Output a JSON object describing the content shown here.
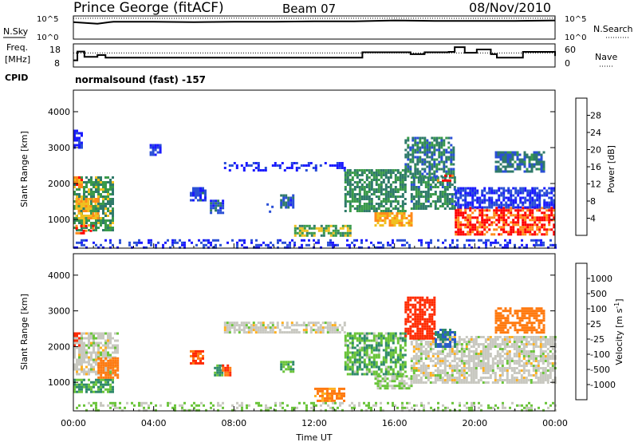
{
  "header": {
    "station": "Prince George (fitACF)",
    "beam": "Beam 07",
    "date": "08/Nov/2010"
  },
  "panels": {
    "nsky": {
      "label": "N.Sky",
      "right_label": "N.Search",
      "y_ticks": [
        "10^5",
        "10^0"
      ]
    },
    "freq": {
      "label_line1": "Freq.",
      "label_line2": "[MHz]",
      "left_ticks": [
        "18",
        "8"
      ],
      "right_ticks": [
        "60",
        "0"
      ],
      "right_label": "Nave"
    },
    "cpid": {
      "label": "CPID",
      "mode_text": "normalsound (fast) -157"
    }
  },
  "colors": {
    "power": [
      "#1a1aff",
      "#2a4fd6",
      "#2f7a6a",
      "#3a9a4a",
      "#7acc3a",
      "#f0c020",
      "#ff8a1a",
      "#ff4a1a",
      "#ff0000"
    ],
    "velocity": [
      "#1a1aff",
      "#2a5cc8",
      "#2f8a6a",
      "#6ac43a",
      "#c8c8c0",
      "#ffb020",
      "#ff7a10",
      "#ff2a00",
      "#ff0000"
    ]
  },
  "chart_data": [
    {
      "type": "line",
      "panel": "nsky",
      "ylabel": "N.Sky",
      "y_ticks": [
        "10^0",
        "10^5"
      ],
      "series": [
        {
          "name": "N.Sky",
          "x": [
            0,
            1.2,
            1.8,
            2,
            4,
            6,
            8,
            10,
            12,
            14,
            16,
            18,
            20,
            22,
            24
          ],
          "y": [
            0.78,
            0.7,
            0.78,
            0.8,
            0.8,
            0.78,
            0.8,
            0.8,
            0.82,
            0.82,
            0.86,
            0.84,
            0.84,
            0.84,
            0.86
          ]
        },
        {
          "name": "N.Search",
          "x": [
            0,
            2,
            4,
            8,
            12,
            16,
            20,
            24
          ],
          "y": [
            0.96,
            0.97,
            0.96,
            0.97,
            0.96,
            0.97,
            0.96,
            0.97
          ]
        }
      ]
    },
    {
      "type": "line",
      "panel": "freq",
      "ylabel": "Freq. [MHz]",
      "y_ticks": [
        8,
        18
      ],
      "series": [
        {
          "name": "Freq.",
          "x": [
            0,
            0.2,
            0.55,
            1.2,
            1.6,
            14.0,
            14.4,
            16.8,
            17.5,
            18.7,
            19.0,
            19.5,
            20.1,
            20.8,
            21.1,
            21.9,
            22.4,
            23.2,
            24
          ],
          "y": [
            10,
            15,
            12,
            13,
            11.5,
            11.5,
            14.6,
            13.5,
            14.6,
            14.8,
            17.5,
            14.3,
            16.2,
            13.5,
            11.5,
            11.5,
            14.8,
            14.8,
            12.5
          ]
        },
        {
          "name": "Nave",
          "x": [
            0,
            24
          ],
          "y": [
            37,
            37
          ]
        }
      ]
    },
    {
      "type": "heatmap",
      "title": "Power [dB]",
      "xlabel": "",
      "ylabel": "Slant Range [km]",
      "x_ticks": [
        "00:00",
        "04:00",
        "08:00",
        "12:00",
        "16:00",
        "20:00",
        "00:00"
      ],
      "xlim": [
        0,
        24
      ],
      "y_ticks": [
        1000,
        2000,
        3000,
        4000
      ],
      "ylim": [
        200,
        4600
      ],
      "colorbar": {
        "label": "Power [dB]",
        "ticks": [
          4,
          8,
          12,
          16,
          20,
          24,
          28
        ]
      },
      "regions": [
        {
          "t0": 0.0,
          "t1": 2.0,
          "r0": 700,
          "r1": 2200,
          "v": 15
        },
        {
          "t0": 0.1,
          "t1": 1.2,
          "r0": 1000,
          "r1": 1600,
          "v": 22
        },
        {
          "t0": 0.1,
          "t1": 1.0,
          "r0": 600,
          "r1": 850,
          "v": 26
        },
        {
          "t0": 0.0,
          "t1": 0.4,
          "r0": 1900,
          "r1": 2200,
          "v": 24
        },
        {
          "t0": 0.0,
          "t1": 0.4,
          "r0": 3000,
          "r1": 3500,
          "v": 4
        },
        {
          "t0": 3.8,
          "t1": 4.3,
          "r0": 2800,
          "r1": 3100,
          "v": 6
        },
        {
          "t0": 5.8,
          "t1": 6.6,
          "r0": 1500,
          "r1": 1900,
          "v": 7
        },
        {
          "t0": 6.8,
          "t1": 7.5,
          "r0": 1200,
          "r1": 1550,
          "v": 9
        },
        {
          "t0": 9.5,
          "t1": 10.2,
          "r0": 1200,
          "r1": 1450,
          "v": 12
        },
        {
          "t0": 10.3,
          "t1": 11.0,
          "r0": 1300,
          "r1": 1700,
          "v": 9
        },
        {
          "t0": 11.0,
          "t1": 13.8,
          "r0": 550,
          "r1": 850,
          "v": 17
        },
        {
          "t0": 7.5,
          "t1": 13.5,
          "r0": 2350,
          "r1": 2600,
          "v": 5
        },
        {
          "t0": 13.5,
          "t1": 16.5,
          "r0": 1200,
          "r1": 2400,
          "v": 14
        },
        {
          "t0": 15.0,
          "t1": 16.8,
          "r0": 800,
          "r1": 1200,
          "v": 22
        },
        {
          "t0": 16.8,
          "t1": 19.0,
          "r0": 1300,
          "r1": 2200,
          "v": 13
        },
        {
          "t0": 16.5,
          "t1": 19.0,
          "r0": 2200,
          "r1": 3300,
          "v": 12
        },
        {
          "t0": 18.0,
          "t1": 19.0,
          "r0": 2050,
          "r1": 2250,
          "v": 26
        },
        {
          "t0": 19.0,
          "t1": 24.0,
          "r0": 600,
          "r1": 1350,
          "v": 27
        },
        {
          "t0": 19.0,
          "t1": 24.0,
          "r0": 1350,
          "r1": 1900,
          "v": 6
        },
        {
          "t0": 21.0,
          "t1": 23.5,
          "r0": 2300,
          "r1": 2900,
          "v": 11
        },
        {
          "t0": 0.0,
          "t1": 24.0,
          "r0": 200,
          "r1": 450,
          "v": 6
        }
      ]
    },
    {
      "type": "heatmap",
      "title": "Velocity [m s-1]",
      "xlabel": "Time UT",
      "ylabel": "Slant Range [km]",
      "x_ticks": [
        "00:00",
        "04:00",
        "08:00",
        "12:00",
        "16:00",
        "20:00",
        "00:00"
      ],
      "xlim": [
        0,
        24
      ],
      "y_ticks": [
        1000,
        2000,
        3000,
        4000
      ],
      "ylim": [
        200,
        4600
      ],
      "colorbar": {
        "label": "Velocity [m s",
        "label_sup": "-1",
        "label_end": "]",
        "ticks": [
          1000,
          500,
          100,
          25,
          -25,
          -100,
          -500,
          -1000
        ]
      },
      "regions": [
        {
          "t0": 0.0,
          "t1": 2.2,
          "r0": 1200,
          "r1": 2400,
          "v": 0
        },
        {
          "t0": 0.0,
          "t1": 2.0,
          "r0": 700,
          "r1": 1100,
          "v": 60
        },
        {
          "t0": 1.2,
          "t1": 2.2,
          "r0": 1100,
          "r1": 1700,
          "v": -150
        },
        {
          "t0": 0.0,
          "t1": 0.3,
          "r0": 2000,
          "r1": 2400,
          "v": -700
        },
        {
          "t0": 5.8,
          "t1": 6.5,
          "r0": 1500,
          "r1": 1900,
          "v": -300
        },
        {
          "t0": 7.0,
          "t1": 7.4,
          "r0": 1200,
          "r1": 1500,
          "v": 80
        },
        {
          "t0": 7.4,
          "t1": 7.8,
          "r0": 1200,
          "r1": 1500,
          "v": -300
        },
        {
          "t0": 10.3,
          "t1": 10.9,
          "r0": 1300,
          "r1": 1600,
          "v": 60
        },
        {
          "t0": 12.0,
          "t1": 13.5,
          "r0": 500,
          "r1": 850,
          "v": -80
        },
        {
          "t0": 7.5,
          "t1": 13.5,
          "r0": 2400,
          "r1": 2700,
          "v": 0
        },
        {
          "t0": 13.5,
          "t1": 16.5,
          "r0": 1200,
          "r1": 2400,
          "v": 50
        },
        {
          "t0": 15.0,
          "t1": 16.8,
          "r0": 800,
          "r1": 1200,
          "v": 30
        },
        {
          "t0": 16.8,
          "t1": 24.0,
          "r0": 1000,
          "r1": 2300,
          "v": 0
        },
        {
          "t0": 16.5,
          "t1": 18.0,
          "r0": 2200,
          "r1": 3400,
          "v": -600
        },
        {
          "t0": 18.0,
          "t1": 19.0,
          "r0": 2000,
          "r1": 2500,
          "v": 300
        },
        {
          "t0": 21.0,
          "t1": 23.5,
          "r0": 2400,
          "r1": 3100,
          "v": -200
        },
        {
          "t0": 0.0,
          "t1": 24.0,
          "r0": 200,
          "r1": 450,
          "v": 30
        }
      ]
    }
  ]
}
